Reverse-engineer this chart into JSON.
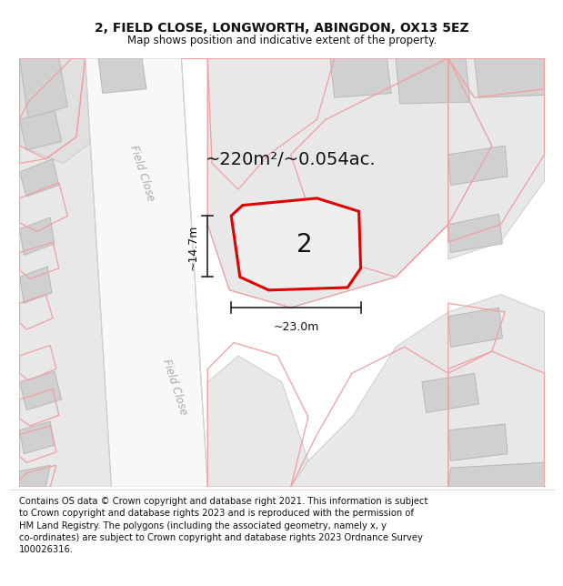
{
  "title": "2, FIELD CLOSE, LONGWORTH, ABINGDON, OX13 5EZ",
  "subtitle": "Map shows position and indicative extent of the property.",
  "footer": "Contains OS data © Crown copyright and database right 2021. This information is subject\nto Crown copyright and database rights 2023 and is reproduced with the permission of\nHM Land Registry. The polygons (including the associated geometry, namely x, y\nco-ordinates) are subject to Crown copyright and database rights 2023 Ordnance Survey\n100026316.",
  "area_label": "~220m²/~0.054ac.",
  "number_label": "2",
  "dim_height": "~14.7m",
  "dim_width": "~23.0m",
  "street_label_top": "Field Close",
  "street_label_bottom": "Field Close",
  "map_bg": "#ebebeb",
  "road_fill": "#f8f8f8",
  "road_edge": "#d0d0d0",
  "building_fill": "#d0d0d0",
  "building_edge": "#b8b8b8",
  "parcel_fill": "#e8e8e8",
  "parcel_edge": "#c8c8c8",
  "boundary_color": "#f0a0a0",
  "highlight_color": "#e00000",
  "highlight_fill": "#f0efef",
  "dim_line_color": "#222222",
  "text_color": "#111111",
  "street_color": "#aaaaaa",
  "footer_fontsize": 7.2,
  "title_fontsize": 10,
  "subtitle_fontsize": 8.5,
  "area_fontsize": 14,
  "number_fontsize": 20,
  "street_fontsize": 8.5,
  "dim_fontsize": 9
}
